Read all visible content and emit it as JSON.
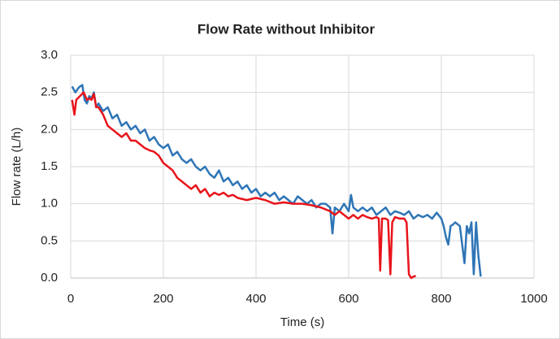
{
  "chart_data": {
    "type": "line",
    "title": "Flow Rate without Inhibitor",
    "x_label": "Time (s)",
    "y_label": "Flow rate (L/h)",
    "xlim": [
      0,
      1000
    ],
    "xticks": [
      0,
      200,
      400,
      600,
      800,
      1000
    ],
    "ylim": [
      0,
      3
    ],
    "yticks": [
      {
        "value": 0,
        "label": "0.0"
      },
      0.5,
      {
        "value": 1,
        "label": "1.0"
      },
      1.5,
      {
        "value": 2,
        "label": "2.0"
      },
      2.5,
      {
        "value": 3,
        "label": "3.0"
      }
    ],
    "grid": true,
    "series": [
      {
        "color": "#2e75b6",
        "x": [
          3,
          10,
          18,
          25,
          30,
          35,
          40,
          45,
          50,
          55,
          60,
          70,
          80,
          90,
          100,
          110,
          120,
          130,
          140,
          150,
          160,
          170,
          180,
          190,
          200,
          210,
          220,
          230,
          240,
          250,
          260,
          270,
          280,
          290,
          300,
          310,
          320,
          330,
          340,
          350,
          360,
          370,
          380,
          390,
          400,
          410,
          420,
          430,
          440,
          450,
          460,
          470,
          480,
          490,
          500,
          510,
          520,
          530,
          540,
          550,
          560,
          565,
          570,
          580,
          590,
          600,
          605,
          610,
          620,
          630,
          640,
          650,
          660,
          670,
          680,
          690,
          700,
          710,
          720,
          730,
          740,
          750,
          760,
          770,
          780,
          790,
          800,
          805,
          810,
          815,
          820,
          825,
          830,
          840,
          850,
          855,
          860,
          865,
          870,
          875,
          880,
          885
        ],
        "values": [
          2.58,
          2.5,
          2.57,
          2.6,
          2.4,
          2.35,
          2.45,
          2.42,
          2.5,
          2.3,
          2.35,
          2.25,
          2.3,
          2.15,
          2.2,
          2.05,
          2.1,
          2.0,
          2.05,
          1.95,
          2.0,
          1.85,
          1.9,
          1.8,
          1.75,
          1.8,
          1.65,
          1.7,
          1.6,
          1.55,
          1.6,
          1.5,
          1.45,
          1.5,
          1.4,
          1.35,
          1.45,
          1.3,
          1.35,
          1.25,
          1.3,
          1.2,
          1.25,
          1.15,
          1.2,
          1.1,
          1.15,
          1.1,
          1.15,
          1.05,
          1.1,
          1.05,
          1.0,
          1.1,
          1.05,
          1.0,
          1.05,
          0.95,
          1.0,
          1.0,
          0.95,
          0.6,
          0.95,
          0.9,
          1.0,
          0.9,
          1.12,
          0.95,
          0.9,
          0.95,
          0.9,
          0.95,
          0.85,
          0.9,
          0.95,
          0.85,
          0.9,
          0.88,
          0.85,
          0.9,
          0.8,
          0.85,
          0.82,
          0.85,
          0.8,
          0.88,
          0.8,
          0.7,
          0.55,
          0.45,
          0.7,
          0.72,
          0.75,
          0.7,
          0.2,
          0.7,
          0.6,
          0.75,
          0.05,
          0.75,
          0.3,
          0.02
        ]
      },
      {
        "color": "#e8141b",
        "x": [
          3,
          8,
          12,
          20,
          28,
          35,
          40,
          45,
          50,
          55,
          60,
          70,
          80,
          90,
          100,
          110,
          120,
          130,
          140,
          150,
          160,
          170,
          180,
          190,
          200,
          210,
          220,
          230,
          240,
          250,
          260,
          270,
          280,
          290,
          300,
          310,
          320,
          330,
          340,
          350,
          360,
          380,
          400,
          420,
          440,
          460,
          480,
          500,
          520,
          540,
          560,
          570,
          580,
          590,
          600,
          610,
          620,
          630,
          640,
          650,
          660,
          665,
          668,
          672,
          680,
          685,
          690,
          694,
          700,
          710,
          720,
          725,
          730,
          735,
          740,
          745
        ],
        "values": [
          2.4,
          2.2,
          2.4,
          2.45,
          2.5,
          2.4,
          2.42,
          2.4,
          2.48,
          2.3,
          2.3,
          2.2,
          2.05,
          2.0,
          1.95,
          1.9,
          1.95,
          1.85,
          1.85,
          1.8,
          1.75,
          1.72,
          1.7,
          1.65,
          1.55,
          1.5,
          1.45,
          1.35,
          1.3,
          1.25,
          1.2,
          1.25,
          1.15,
          1.2,
          1.1,
          1.15,
          1.12,
          1.15,
          1.1,
          1.12,
          1.08,
          1.05,
          1.08,
          1.05,
          1.0,
          1.02,
          1.0,
          1.0,
          0.98,
          0.95,
          0.9,
          0.85,
          0.9,
          0.85,
          0.8,
          0.85,
          0.8,
          0.85,
          0.82,
          0.8,
          0.82,
          0.8,
          0.1,
          0.8,
          0.8,
          0.78,
          0.05,
          0.75,
          0.82,
          0.8,
          0.8,
          0.75,
          0.05,
          0.0,
          0.02,
          0.03
        ]
      }
    ]
  }
}
